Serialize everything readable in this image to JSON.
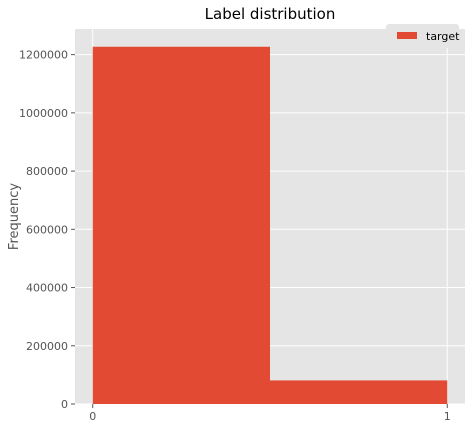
{
  "chart_data": {
    "type": "bar",
    "title": "Label distribution",
    "xlabel": "",
    "ylabel": "Frequency",
    "bins": [
      {
        "x_start": 0,
        "x_end": 0.5,
        "value": 1227000
      },
      {
        "x_start": 0.5,
        "x_end": 1,
        "value": 81000
      }
    ],
    "xlim": [
      -0.05,
      1.05
    ],
    "ylim": [
      0,
      1288000
    ],
    "x_ticks": [
      0,
      1
    ],
    "y_ticks": [
      0,
      200000,
      400000,
      600000,
      800000,
      1000000,
      1200000
    ],
    "grid": true,
    "legend": {
      "position": "top-right",
      "entries": [
        "target"
      ]
    },
    "series": [
      {
        "name": "target",
        "color": "#E24A33"
      }
    ],
    "style": {
      "background": "#E5E5E5",
      "grid_color": "#FFFFFF",
      "tick_color": "#555555"
    }
  }
}
